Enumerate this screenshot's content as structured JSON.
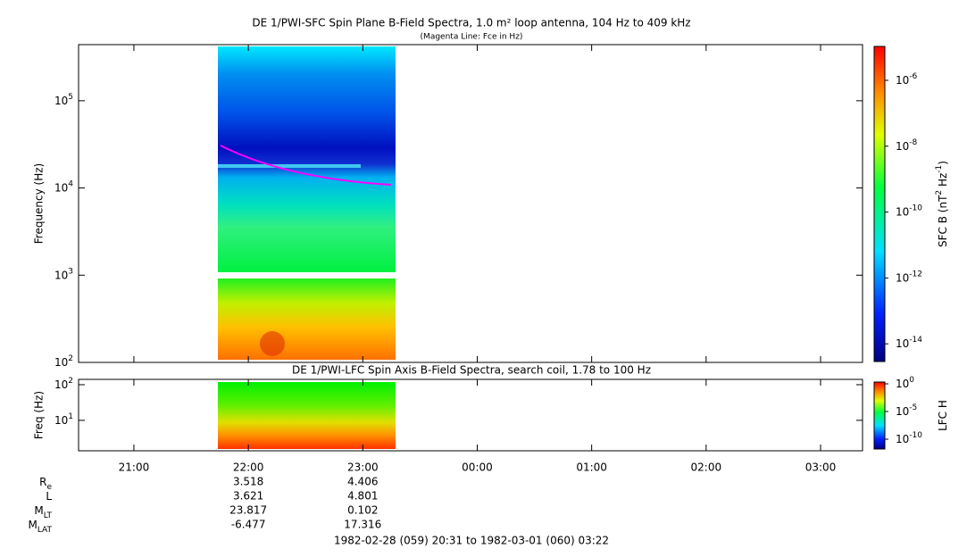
{
  "title": "DE 1/PWI-SFC  Spin Plane B-Field Spectra, 1.0 m² loop antenna, 104 Hz to 409 kHz",
  "subtitle": "(Magenta Line: Fce in Hz)",
  "panels": [
    {
      "ylabel": "Frequency (Hz)",
      "ylim": [
        100,
        440000
      ],
      "yticks": [
        {
          "value": 100,
          "label": "10",
          "exp": "2"
        },
        {
          "value": 1000,
          "label": "10",
          "exp": "3"
        },
        {
          "value": 10000,
          "label": "10",
          "exp": "4"
        },
        {
          "value": 100000,
          "label": "10",
          "exp": "5"
        }
      ],
      "colorbar_label": {
        "label": "SFC B (nT",
        "exp1": "2",
        "mid": " Hz",
        "exp2": "-1",
        "end": ")"
      },
      "clim": [
        2.9e-15,
        1.07e-05
      ],
      "cticks": [
        {
          "value": 1e-14,
          "label": "10",
          "exp": "-14"
        },
        {
          "value": 1e-12,
          "label": "10",
          "exp": "-12"
        },
        {
          "value": 1e-10,
          "label": "10",
          "exp": "-10"
        },
        {
          "value": 1e-08,
          "label": "10",
          "exp": "-8"
        },
        {
          "value": 1e-06,
          "label": "10",
          "exp": "-6"
        }
      ]
    },
    {
      "title": "DE 1/PWI-LFC  Spin Axis B-Field Spectra, search coil, 1.78 to 100 Hz",
      "ylabel": "Freq (Hz)",
      "ylim": [
        1.4,
        141
      ],
      "yticks": [
        {
          "value": 10,
          "label": "10",
          "exp": "1"
        },
        {
          "value": 100,
          "label": "10",
          "exp": "2"
        }
      ],
      "colorbar_label": {
        "label": "LFC H"
      },
      "clim": [
        1.7e-12,
        2.1
      ],
      "cticks": [
        {
          "value": 1e-10,
          "label": "10",
          "exp": "-10"
        },
        {
          "value": 1e-05,
          "label": "10",
          "exp": "-5"
        },
        {
          "value": 1,
          "label": "10",
          "exp": "0"
        }
      ]
    }
  ],
  "xlim": [
    20.5167,
    27.3667
  ],
  "xticks": [
    {
      "value": 21,
      "label": "21:00"
    },
    {
      "value": 22,
      "label": "22:00"
    },
    {
      "value": 23,
      "label": "23:00"
    },
    {
      "value": 24,
      "label": "00:00"
    },
    {
      "value": 25,
      "label": "01:00"
    },
    {
      "value": 26,
      "label": "02:00"
    },
    {
      "value": 27,
      "label": "03:00"
    }
  ],
  "orbit": [
    {
      "label": "R",
      "sub": "e",
      "values": [
        "3.518",
        "4.406"
      ]
    },
    {
      "label": "L",
      "values": [
        "3.621",
        "4.801"
      ]
    },
    {
      "label": "M",
      "sub": "LT",
      "values": [
        "23.817",
        "0.102"
      ]
    },
    {
      "label": "M",
      "sub": "LAT",
      "values": [
        "-6.477",
        "17.316"
      ]
    }
  ],
  "footer": "1982-02-28 (059) 20:31 to 1982-03-01 (060) 03:22"
}
